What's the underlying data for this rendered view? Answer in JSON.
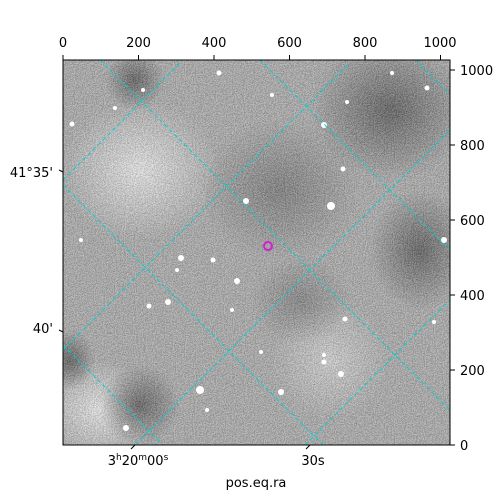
{
  "image": {
    "xlabel": "pos.eq.ra",
    "top_ticks": [
      "0",
      "200",
      "400",
      "600",
      "800",
      "1000"
    ],
    "right_ticks": [
      "0",
      "200",
      "400",
      "600",
      "800",
      "1000"
    ],
    "left_ticks": [
      "41°35'",
      "40'"
    ],
    "bottom_ticks": [
      "3h20m00s",
      "30s"
    ],
    "bottom_tick_main": [
      "3",
      "h",
      "20",
      "m",
      "00",
      "s"
    ],
    "colors": {
      "grid": "#00d0d0",
      "marker": "#d020d0",
      "axes": "#000000"
    },
    "colormap": "grayscale"
  }
}
